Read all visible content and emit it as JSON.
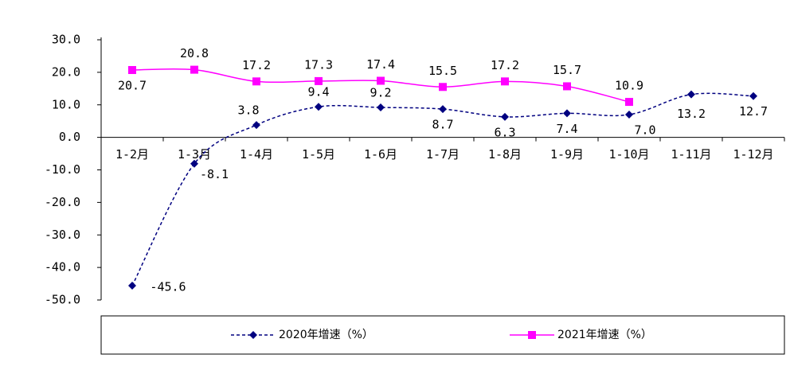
{
  "chart_data": {
    "type": "line",
    "categories": [
      "1-2月",
      "1-3月",
      "1-4月",
      "1-5月",
      "1-6月",
      "1-7月",
      "1-8月",
      "1-9月",
      "1-10月",
      "1-11月",
      "1-12月"
    ],
    "series": [
      {
        "name": "2020年增速（%）",
        "color": "#000080",
        "marker": "diamond",
        "dashed": true,
        "values": [
          -45.6,
          -8.1,
          3.8,
          9.4,
          9.2,
          8.7,
          6.3,
          7.4,
          7.0,
          13.2,
          12.7
        ],
        "value_labels": [
          "-45.6",
          "-8.1",
          "3.8",
          "9.4",
          "9.2",
          "8.7",
          "6.3",
          "7.4",
          "7.0",
          "13.2",
          "12.7"
        ]
      },
      {
        "name": "2021年增速（%）",
        "color": "#ff00ff",
        "marker": "square",
        "dashed": false,
        "values": [
          20.7,
          20.8,
          17.2,
          17.3,
          17.4,
          15.5,
          17.2,
          15.7,
          10.9,
          null,
          null
        ],
        "value_labels": [
          "20.7",
          "20.8",
          "17.2",
          "17.3",
          "17.4",
          "15.5",
          "17.2",
          "15.7",
          "10.9",
          null,
          null
        ]
      }
    ],
    "ylim": [
      -50,
      30
    ],
    "yticks": [
      {
        "value": -50,
        "label": "-50.0"
      },
      {
        "value": -40,
        "label": "-40.0"
      },
      {
        "value": -30,
        "label": "-30.0"
      },
      {
        "value": -20,
        "label": "-20.0"
      },
      {
        "value": -10,
        "label": "-10.0"
      },
      {
        "value": 0,
        "label": "0.0"
      },
      {
        "value": 10,
        "label": "10.0"
      },
      {
        "value": 20,
        "label": "20.0"
      },
      {
        "value": 30,
        "label": "30.0"
      }
    ],
    "grid": false,
    "legend": "bottom"
  }
}
